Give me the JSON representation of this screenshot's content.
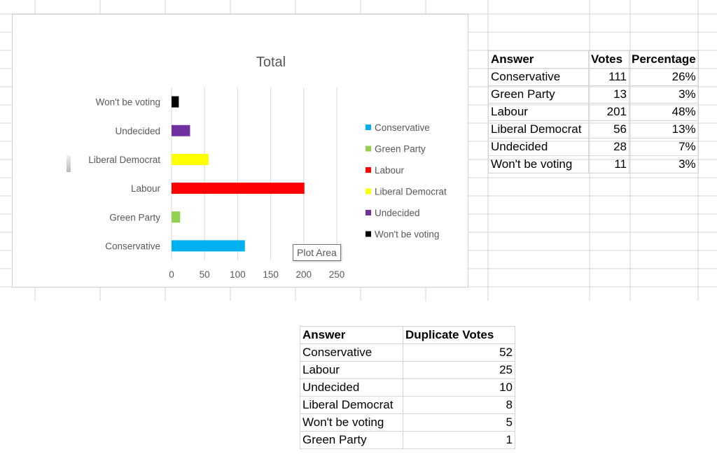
{
  "chart_data": {
    "type": "bar",
    "orientation": "horizontal",
    "title": "Total",
    "categories": [
      "Conservative",
      "Green Party",
      "Labour",
      "Liberal Democrat",
      "Undecided",
      "Won't be voting"
    ],
    "values": [
      111,
      13,
      201,
      56,
      28,
      11
    ],
    "colors": [
      "#00b0f0",
      "#92d050",
      "#ff0000",
      "#ffff00",
      "#7030a0",
      "#000000"
    ],
    "xlim": [
      0,
      250
    ],
    "xticks": [
      "0",
      "50",
      "100",
      "150",
      "200",
      "250"
    ],
    "grid": true,
    "legend": {
      "placement": "right",
      "entries": [
        "Conservative",
        "Green Party",
        "Labour",
        "Liberal Democrat",
        "Undecided",
        "Won't be voting"
      ]
    }
  },
  "tooltip": {
    "text": "Plot Area"
  },
  "results_table": {
    "headers": [
      "Answer",
      "Votes",
      "Percentage"
    ],
    "rows": [
      [
        "Conservative",
        "111",
        "26%"
      ],
      [
        "Green Party",
        "13",
        "3%"
      ],
      [
        "Labour",
        "201",
        "48%"
      ],
      [
        "Liberal Democrat",
        "56",
        "13%"
      ],
      [
        "Undecided",
        "28",
        "7%"
      ],
      [
        "Won't be voting",
        "11",
        "3%"
      ]
    ]
  },
  "duplicate_table": {
    "headers": [
      "Answer",
      "Duplicate Votes"
    ],
    "rows": [
      [
        "Conservative",
        "52"
      ],
      [
        "Labour",
        "25"
      ],
      [
        "Undecided",
        "10"
      ],
      [
        "Liberal Democrat",
        "8"
      ],
      [
        "Won't be voting",
        "5"
      ],
      [
        "Green Party",
        "1"
      ]
    ]
  }
}
